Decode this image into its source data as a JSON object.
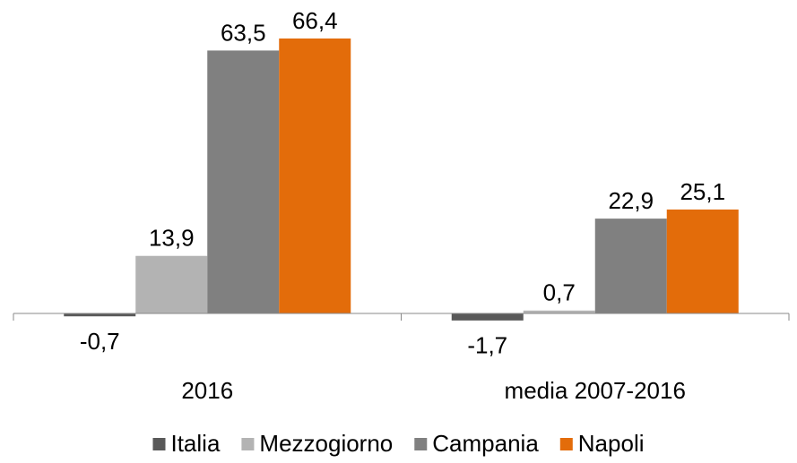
{
  "chart_data": {
    "type": "bar",
    "categories": [
      "2016",
      "media 2007-2016"
    ],
    "series": [
      {
        "name": "Italia",
        "color": "#595959",
        "values": [
          -0.7,
          -1.7
        ],
        "value_labels": [
          "-0,7",
          "-1,7"
        ]
      },
      {
        "name": "Mezzogiorno",
        "color": "#b3b3b3",
        "values": [
          13.9,
          0.7
        ],
        "value_labels": [
          "13,9",
          "0,7"
        ]
      },
      {
        "name": "Campania",
        "color": "#808080",
        "values": [
          63.5,
          22.9
        ],
        "value_labels": [
          "63,5",
          "22,9"
        ]
      },
      {
        "name": "Napoli",
        "color": "#e36c0a",
        "values": [
          66.4,
          25.1
        ],
        "value_labels": [
          "66,4",
          "25,1"
        ]
      }
    ],
    "legend": "bottom"
  }
}
